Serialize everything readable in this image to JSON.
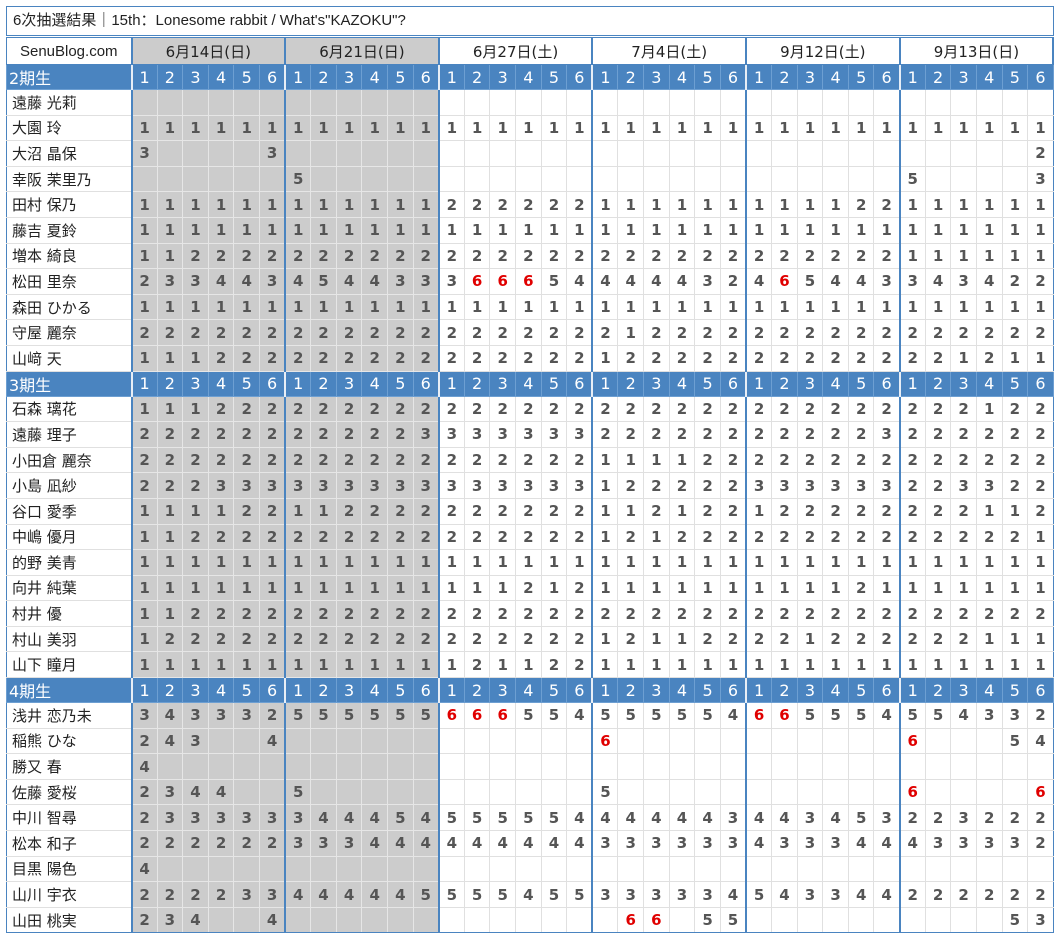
{
  "title": "6次抽選結果｜15th：Lonesome rabbit / What's\"KAZOKU\"?",
  "site": "SenuBlog.com",
  "dates": [
    {
      "label": "6月14日(日)",
      "gray": true
    },
    {
      "label": "6月21日(日)",
      "gray": true
    },
    {
      "label": "6月27日(土)",
      "gray": false
    },
    {
      "label": "7月4日(土)",
      "gray": false
    },
    {
      "label": "9月12日(土)",
      "gray": false
    },
    {
      "label": "9月13日(日)",
      "gray": false
    }
  ],
  "part_numbers": [
    "1",
    "2",
    "3",
    "4",
    "5",
    "6"
  ],
  "groups": [
    {
      "label": "2期生",
      "members": [
        {
          "name": "遠藤 光莉",
          "values": "------------------------------------"
        },
        {
          "name": "大園 玲",
          "values": "111111111111111111111111111111111111"
        },
        {
          "name": "大沼 晶保",
          "values": "3----3-----------------------------2"
        },
        {
          "name": "幸阪 茉里乃",
          "values": "------5-----------------------5----3"
        },
        {
          "name": "田村 保乃",
          "values": "111111111111222222111111111122111111"
        },
        {
          "name": "藤吉 夏鈴",
          "values": "111111111111111111111111111111111111"
        },
        {
          "name": "増本 綺良",
          "values": "112222222222222222222222222222111111"
        },
        {
          "name": "松田 里奈",
          "values": "233443454433366654444432465443343422"
        },
        {
          "name": "森田 ひかる",
          "values": "111111111111111111111111111111111111"
        },
        {
          "name": "守屋 麗奈",
          "values": "222222222222222222212222222222222222"
        },
        {
          "name": "山﨑 天",
          "values": "111222222222222222122222222222221211"
        }
      ],
      "red": [
        "7-13",
        "7-14",
        "7-15",
        "7-25"
      ]
    },
    {
      "label": "3期生",
      "members": [
        {
          "name": "石森 璃花",
          "values": "111222222222222222222222222222222122"
        },
        {
          "name": "遠藤 理子",
          "values": "222222222223333333222222222223222222"
        },
        {
          "name": "小田倉 麗奈",
          "values": "222222222222222222111122222222222222"
        },
        {
          "name": "小島 凪紗",
          "values": "222333333333333333122222333333223322"
        },
        {
          "name": "谷口 愛季",
          "values": "111122112222222222112122122222222112"
        },
        {
          "name": "中嶋 優月",
          "values": "112222222222222222121222222222222221"
        },
        {
          "name": "的野 美青",
          "values": "111111111111111111111111111111111111"
        },
        {
          "name": "向井 純葉",
          "values": "111111111111111212111111111121111111"
        },
        {
          "name": "村井 優",
          "values": "112222222222222222222222222222222222"
        },
        {
          "name": "村山 美羽",
          "values": "122222222222222222121122221222222111"
        },
        {
          "name": "山下 瞳月",
          "values": "111111111111121122111111111111111111"
        }
      ],
      "red": []
    },
    {
      "label": "4期生",
      "members": [
        {
          "name": "浅井 恋乃未",
          "values": "343332555555666554555554665554554332"
        },
        {
          "name": "稲熊 ひな",
          "values": "243--4------------6-----------6---54"
        },
        {
          "name": "勝又 春",
          "values": "4-----------------------------------"
        },
        {
          "name": "佐藤 愛桜",
          "values": "2344--5-----------5-----------6----6"
        },
        {
          "name": "中川 智尋",
          "values": "233333344454555554444443443453223222"
        },
        {
          "name": "松本 和子",
          "values": "222222333444444444333333433344433332"
        },
        {
          "name": "目黒 陽色",
          "values": "4-----------------------------------"
        },
        {
          "name": "山川 宇衣",
          "values": "222233444445555455333334543344222222"
        },
        {
          "name": "山田 桃実",
          "values": "234--4-------------66-55----------53"
        }
      ],
      "red": [
        "0-12",
        "0-13",
        "0-14",
        "0-24",
        "0-25",
        "1-18",
        "1-30",
        "3-30",
        "3-35",
        "8-19",
        "8-20"
      ]
    }
  ]
}
